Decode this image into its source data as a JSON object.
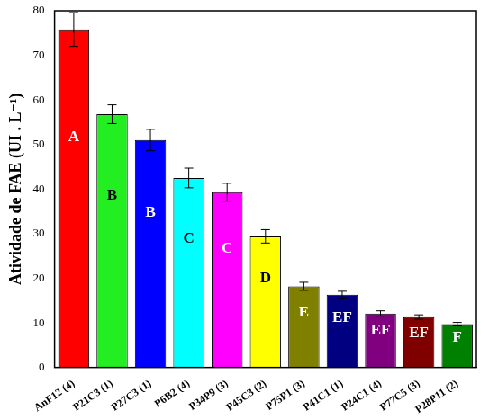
{
  "chart_data": {
    "type": "bar",
    "y_label": "Atividade de FAE (UI . L⁻¹)",
    "categories": [
      "AnF12 (4)",
      "P21C3 (1)",
      "P27C3 (1)",
      "P6B2 (4)",
      "P34P9 (3)",
      "P45C3 (2)",
      "P75P1 (3)",
      "P41C1 (1)",
      "P24C1 (4)",
      "P77C5 (3)",
      "P28P11 (2)"
    ],
    "values": [
      75.8,
      56.8,
      51.0,
      42.5,
      39.3,
      29.4,
      18.2,
      16.3,
      12.1,
      11.3,
      9.7
    ],
    "errors": [
      3.8,
      2.1,
      2.4,
      2.2,
      2.0,
      1.5,
      0.9,
      0.8,
      0.6,
      0.5,
      0.4
    ],
    "annotations": [
      "A",
      "B",
      "B",
      "C",
      "C",
      "D",
      "E",
      "EF",
      "EF",
      "EF",
      "F"
    ],
    "colors": [
      "#ff0000",
      "#22ee22",
      "#0000ff",
      "#00ffff",
      "#ff00ff",
      "#ffff00",
      "#808000",
      "#000080",
      "#800080",
      "#800000",
      "#008000"
    ],
    "ylim": [
      0,
      80
    ],
    "yticks": [
      0,
      10,
      20,
      30,
      40,
      50,
      60,
      70,
      80
    ],
    "grid": false
  }
}
